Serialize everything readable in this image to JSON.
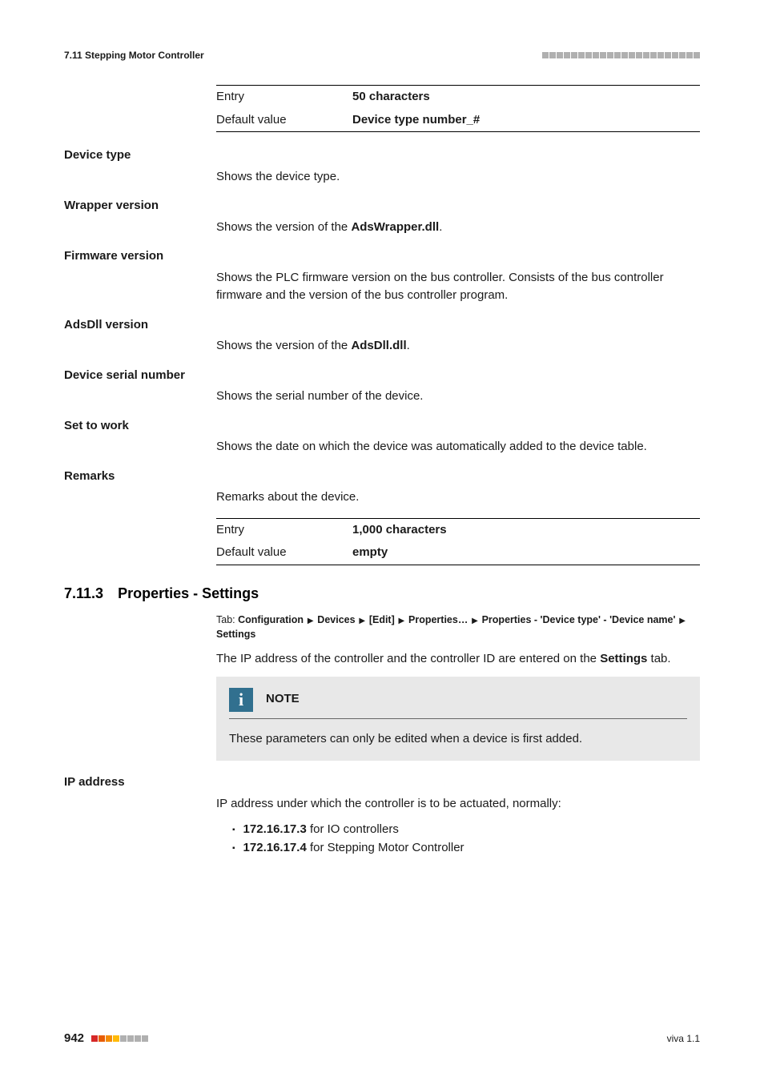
{
  "header": {
    "left": "7.11 Stepping Motor Controller",
    "square_count": 22,
    "square_color": "#b0b0b0"
  },
  "top_table": {
    "rows": [
      {
        "k": "Entry",
        "v": "50 characters"
      },
      {
        "k": "Default value",
        "v": "Device type number_#"
      }
    ]
  },
  "fields": [
    {
      "label": "Device type",
      "desc_pre": "Shows the device type."
    },
    {
      "label": "Wrapper version",
      "desc_pre": "Shows the version of the ",
      "bold": "AdsWrapper.dll",
      "desc_post": "."
    },
    {
      "label": "Firmware version",
      "desc_pre": "Shows the PLC firmware version on the bus controller. Consists of the bus controller firmware and the version of the bus controller program."
    },
    {
      "label": "AdsDll version",
      "desc_pre": "Shows the version of the ",
      "bold": "AdsDll.dll",
      "desc_post": "."
    },
    {
      "label": "Device serial number",
      "desc_pre": "Shows the serial number of the device."
    },
    {
      "label": "Set to work",
      "desc_pre": "Shows the date on which the device was automatically added to the device table."
    },
    {
      "label": "Remarks",
      "desc_pre": "Remarks about the device."
    }
  ],
  "remarks_table": {
    "rows": [
      {
        "k": "Entry",
        "v": "1,000 characters"
      },
      {
        "k": "Default value",
        "v": "empty"
      }
    ]
  },
  "section": {
    "num": "7.11.3",
    "title": "Properties - Settings",
    "tab_label": "Tab:",
    "tab_path": [
      "Configuration",
      "Devices",
      "[Edit]",
      "Properties…",
      "Properties - 'Device type' - 'Device name'",
      "Settings"
    ],
    "intro_pre": "The IP address of the controller and the controller ID are entered on the ",
    "intro_bold": "Settings",
    "intro_post": " tab."
  },
  "note": {
    "title": "NOTE",
    "body": "These parameters can only be edited when a device is first added.",
    "icon_bg": "#31708f"
  },
  "ip": {
    "label": "IP address",
    "desc": "IP address under which the controller is to be actuated, normally:",
    "bullets": [
      {
        "bold": "172.16.17.3",
        "rest": " for IO controllers"
      },
      {
        "bold": "172.16.17.4",
        "rest": " for Stepping Motor Controller"
      }
    ]
  },
  "footer": {
    "page": "942",
    "square_count": 8,
    "square_colors": [
      "#d62828",
      "#e85d04",
      "#f48c06",
      "#ffba08",
      "#b0b0b0",
      "#b0b0b0",
      "#b0b0b0",
      "#b0b0b0"
    ],
    "right": "viva 1.1"
  }
}
